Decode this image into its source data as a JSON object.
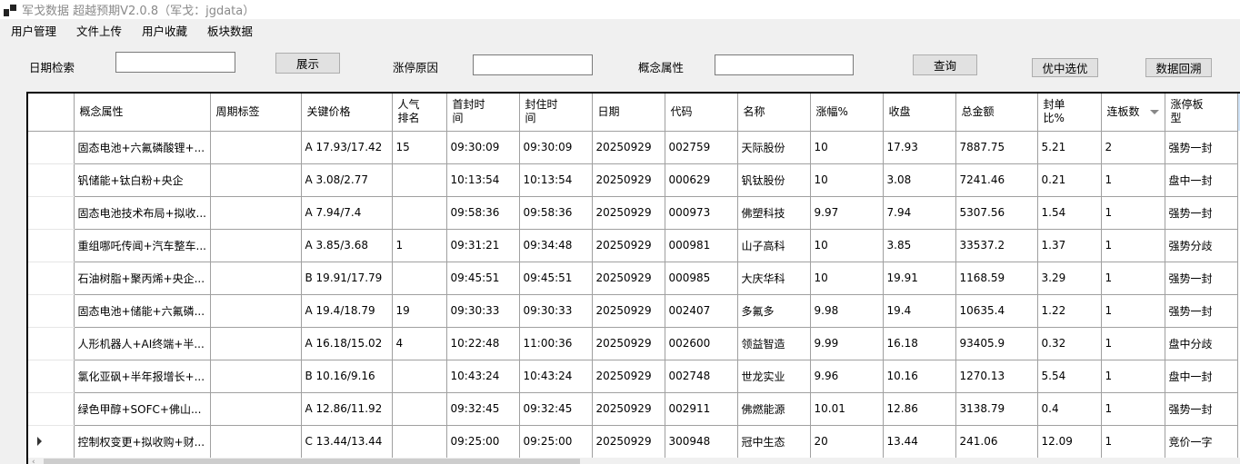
{
  "window": {
    "title": "军戈数据 超越预期V2.0.8（军戈：jgdata）"
  },
  "menu": [
    "用户管理",
    "文件上传",
    "用户收藏",
    "板块数据"
  ],
  "toolbar": {
    "date_label": "日期检索",
    "date_value": "",
    "show_button": "展示",
    "reason_label": "涨停原因",
    "reason_value": "",
    "concept_label": "概念属性",
    "concept_value": "",
    "query_button": "查询",
    "select_button": "优中选优",
    "backtest_button": "数据回溯"
  },
  "table": {
    "columns": [
      "概念属性",
      "周期标签",
      "关键价格",
      "人气\n排名",
      "首封时\n间",
      "封住时\n间",
      "日期",
      "代码",
      "名称",
      "涨幅%",
      "收盘",
      "总金额",
      "封单\n比%",
      "连板数",
      "涨停板\n型"
    ],
    "sorted_column": "连板数",
    "current_row": 9,
    "rows": [
      [
        "固态电池+六氟磷酸锂+...",
        "",
        "A 17.93/17.42",
        "15",
        "09:30:09",
        "09:30:09",
        "20250929",
        "002759",
        "天际股份",
        "10",
        "17.93",
        "7887.75",
        "5.21",
        "2",
        "强势一封"
      ],
      [
        "钒储能+钛白粉+央企",
        "",
        "A 3.08/2.77",
        "",
        "10:13:54",
        "10:13:54",
        "20250929",
        "000629",
        "钒钛股份",
        "10",
        "3.08",
        "7241.46",
        "0.21",
        "1",
        "盘中一封"
      ],
      [
        "固态电池技术布局+拟收...",
        "",
        "A 7.94/7.4",
        "",
        "09:58:36",
        "09:58:36",
        "20250929",
        "000973",
        "佛塑科技",
        "9.97",
        "7.94",
        "5307.56",
        "1.54",
        "1",
        "强势一封"
      ],
      [
        "重组哪吒传闻+汽车整车...",
        "",
        "A 3.85/3.68",
        "1",
        "09:31:21",
        "09:34:48",
        "20250929",
        "000981",
        "山子高科",
        "10",
        "3.85",
        "33537.2",
        "1.37",
        "1",
        "强势分歧"
      ],
      [
        "石油树脂+聚丙烯+央企...",
        "",
        "B 19.91/17.79",
        "",
        "09:45:51",
        "09:45:51",
        "20250929",
        "000985",
        "大庆华科",
        "10",
        "19.91",
        "1168.59",
        "3.29",
        "1",
        "强势一封"
      ],
      [
        "固态电池+储能+六氟磷...",
        "",
        "A 19.4/18.79",
        "19",
        "09:30:33",
        "09:30:33",
        "20250929",
        "002407",
        "多氟多",
        "9.98",
        "19.4",
        "10635.4",
        "1.22",
        "1",
        "强势一封"
      ],
      [
        "人形机器人+AI终端+半...",
        "",
        "A 16.18/15.02",
        "4",
        "10:22:48",
        "11:00:36",
        "20250929",
        "002600",
        "领益智造",
        "9.99",
        "16.18",
        "93405.9",
        "0.32",
        "1",
        "盘中分歧"
      ],
      [
        "氯化亚砜+半年报增长+...",
        "",
        "B 10.16/9.16",
        "",
        "10:43:24",
        "10:43:24",
        "20250929",
        "002748",
        "世龙实业",
        "9.96",
        "10.16",
        "1270.13",
        "5.54",
        "1",
        "盘中一封"
      ],
      [
        "绿色甲醇+SOFC+佛山...",
        "",
        "A 12.86/11.92",
        "",
        "09:32:45",
        "09:32:45",
        "20250929",
        "002911",
        "佛燃能源",
        "10.01",
        "12.86",
        "3138.79",
        "0.4",
        "1",
        "强势一封"
      ],
      [
        "控制权变更+拟收购+财...",
        "",
        "C 13.44/13.44",
        "",
        "09:25:00",
        "09:25:00",
        "20250929",
        "300948",
        "冠中生态",
        "20",
        "13.44",
        "241.06",
        "12.09",
        "1",
        "竞价一字"
      ]
    ]
  }
}
